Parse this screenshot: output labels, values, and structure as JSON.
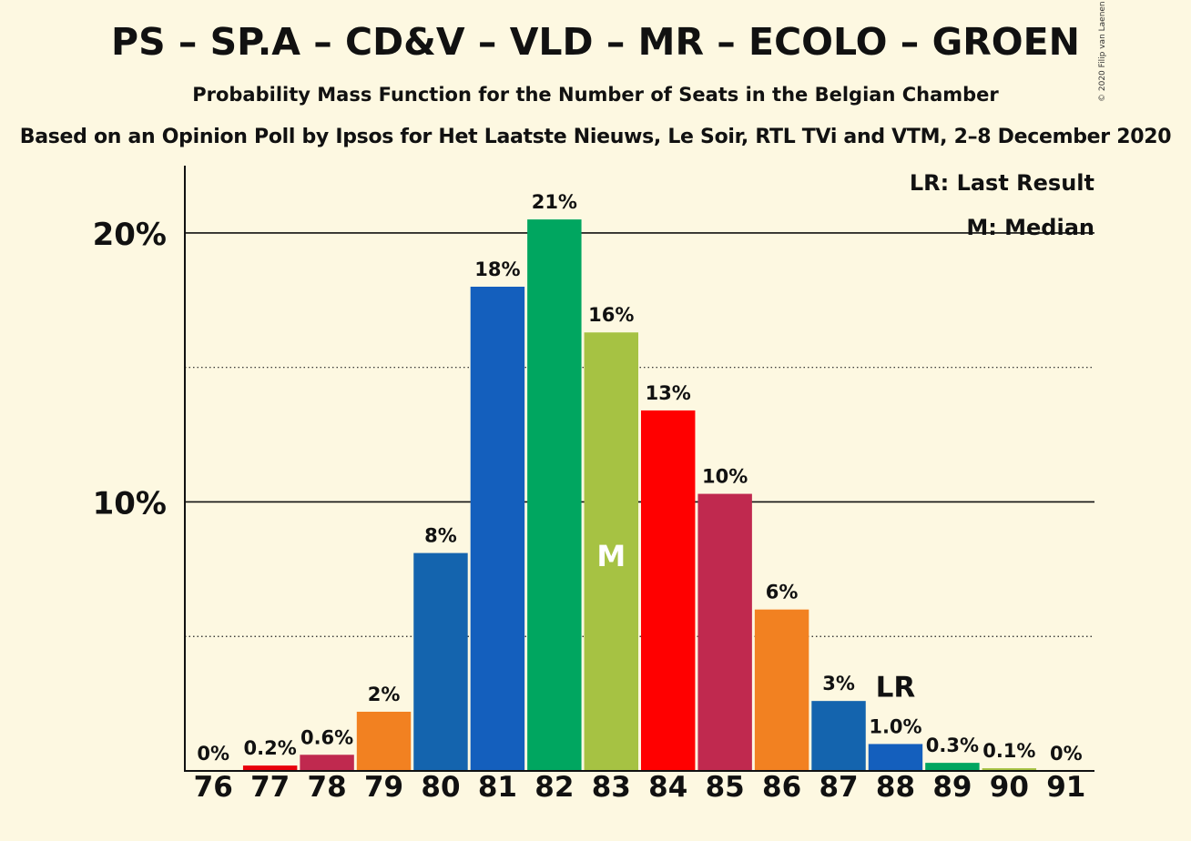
{
  "title": "PS – SP.A – CD&V – VLD – MR – ECOLO – GROEN",
  "subtitle": "Probability Mass Function for the Number of Seats in the Belgian Chamber",
  "source": "Based on an Opinion Poll by Ipsos for Het Laatste Nieuws, Le Soir, RTL TVi and VTM, 2–8 December 2020",
  "copyright": "© 2020 Filip van Laenen",
  "legend": {
    "last_result": "LR: Last Result",
    "median": "M: Median"
  },
  "chart_data": {
    "type": "bar",
    "categories": [
      "76",
      "77",
      "78",
      "79",
      "80",
      "81",
      "82",
      "83",
      "84",
      "85",
      "86",
      "87",
      "88",
      "89",
      "90",
      "91"
    ],
    "values": [
      0,
      0.2,
      0.6,
      2.2,
      8.1,
      18.0,
      20.5,
      16.3,
      13.4,
      10.3,
      6.0,
      2.6,
      1.0,
      0.3,
      0.1,
      0
    ],
    "labels": [
      "0%",
      "0.2%",
      "0.6%",
      "2%",
      "8%",
      "18%",
      "21%",
      "16%",
      "13%",
      "10%",
      "6%",
      "3%",
      "1.0%",
      "0.3%",
      "0.1%",
      "0%"
    ],
    "colors": [
      "#e8000b",
      "#e8000b",
      "#c0294f",
      "#f28121",
      "#1464ae",
      "#145fbd",
      "#00a660",
      "#a6c243",
      "#ff0000",
      "#c0294f",
      "#f28121",
      "#1464ae",
      "#145fbd",
      "#00a660",
      "#a6c243",
      "#ff0000"
    ],
    "ylim": [
      0,
      22.5
    ],
    "y_ticks": [
      {
        "value": 10,
        "label": "10%"
      },
      {
        "value": 20,
        "label": "20%"
      }
    ],
    "minor_gridlines": [
      5,
      15
    ],
    "median": {
      "category": "83",
      "marker": "M"
    },
    "last_result": {
      "category": "88",
      "marker": "LR"
    },
    "grid": true,
    "legend_position": "top-right"
  }
}
